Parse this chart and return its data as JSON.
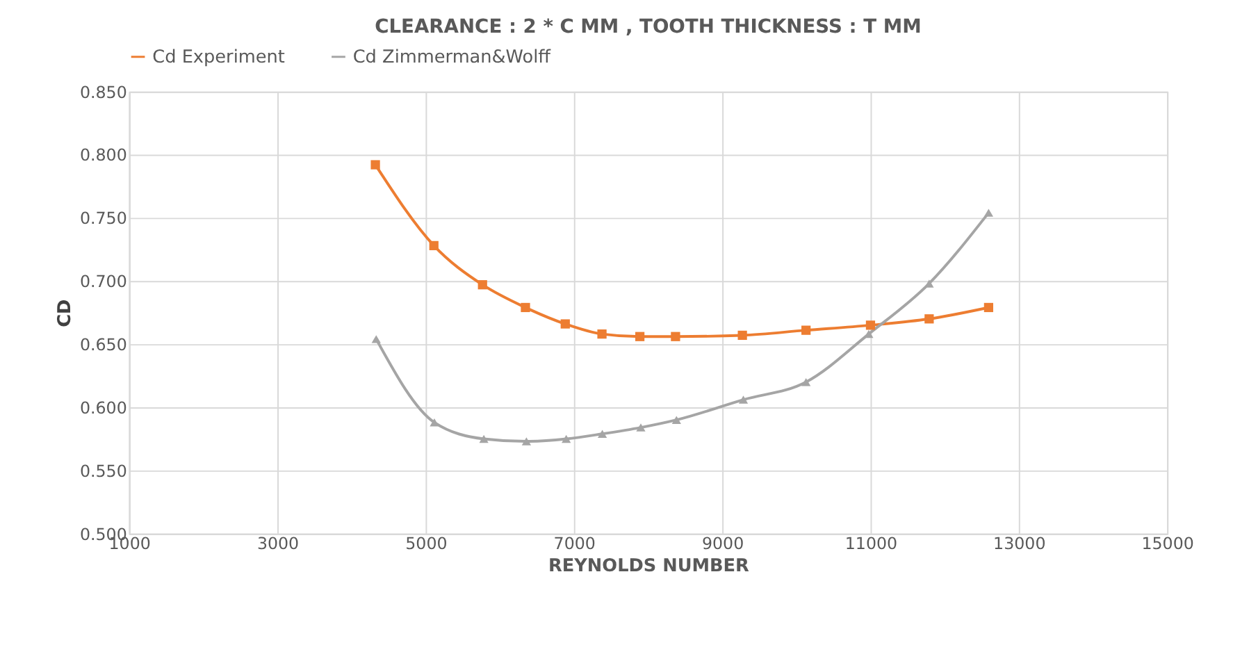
{
  "chart_data": {
    "type": "line",
    "title": "CLEARANCE : 2 * C MM , TOOTH THICKNESS : T MM",
    "xlabel": "REYNOLDS NUMBER",
    "ylabel": "CD",
    "series": [
      {
        "name": "Cd Experiment",
        "color": "#ed7d31",
        "marker": "square",
        "x": [
          4322,
          5111,
          5767,
          6346,
          6883,
          7378,
          7889,
          8370,
          9272,
          10130,
          11000,
          11791,
          12593
        ],
        "values": [
          0.792,
          0.728,
          0.697,
          0.679,
          0.666,
          0.658,
          0.656,
          0.656,
          0.657,
          0.661,
          0.665,
          0.67,
          0.679
        ]
      },
      {
        "name": "Cd Zimmerman&Wolff",
        "color": "#a5a5a5",
        "marker": "triangle",
        "x": [
          4333,
          5118,
          5785,
          6359,
          6896,
          7383,
          7902,
          8383,
          9285,
          10130,
          10976,
          11791,
          12593
        ],
        "values": [
          0.654,
          0.588,
          0.575,
          0.573,
          0.575,
          0.579,
          0.584,
          0.59,
          0.606,
          0.62,
          0.658,
          0.698,
          0.754
        ]
      }
    ],
    "xlim": [
      1000,
      15000
    ],
    "xticks": [
      1000,
      3000,
      5000,
      7000,
      9000,
      11000,
      13000,
      15000
    ],
    "ylim": [
      0.5,
      0.85
    ],
    "yticks": [
      {
        "value": 0.5,
        "label": "0.500"
      },
      {
        "value": 0.55,
        "label": "0.550"
      },
      {
        "value": 0.6,
        "label": "0.600"
      },
      {
        "value": 0.65,
        "label": "0.650"
      },
      {
        "value": 0.7,
        "label": "0.700"
      },
      {
        "value": 0.75,
        "label": "0.750"
      },
      {
        "value": 0.8,
        "label": "0.800"
      },
      {
        "value": 0.85,
        "label": "0.850"
      }
    ],
    "grid": true,
    "legend": "top",
    "line_style": "solid"
  }
}
